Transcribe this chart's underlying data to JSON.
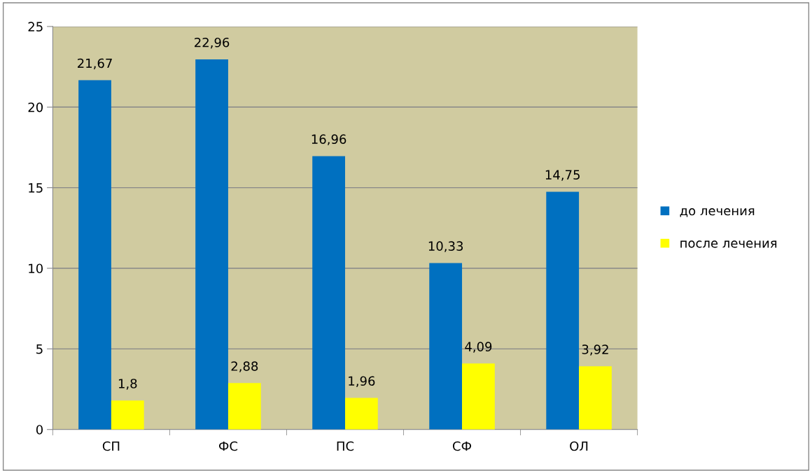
{
  "chart_data": {
    "type": "bar",
    "categories": [
      "СП",
      "ФС",
      "ПС",
      "СФ",
      "ОЛ"
    ],
    "series": [
      {
        "name": "до лечения",
        "color": "#0070c0",
        "values": [
          21.67,
          22.96,
          16.96,
          10.33,
          14.75
        ],
        "value_labels": [
          "21,67",
          "22,96",
          "16,96",
          "10,33",
          "14,75"
        ]
      },
      {
        "name": "после лечения",
        "color": "#ffff00",
        "values": [
          1.8,
          2.88,
          1.96,
          4.09,
          3.92
        ],
        "value_labels": [
          "1,8",
          "2,88",
          "1,96",
          "4,09",
          "3,92"
        ]
      }
    ],
    "ylim": [
      0,
      25
    ],
    "yticks": [
      0,
      5,
      10,
      15,
      20,
      25
    ],
    "grid": "y",
    "legend": "right"
  }
}
